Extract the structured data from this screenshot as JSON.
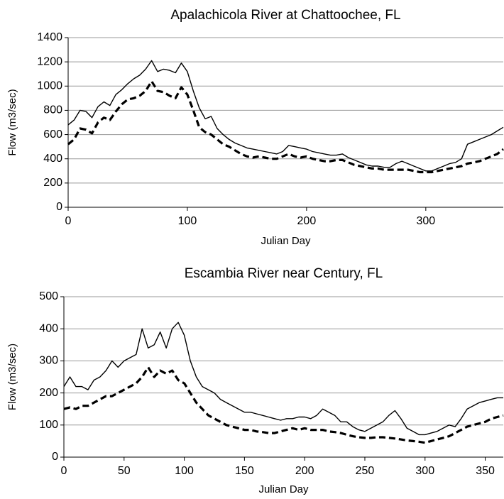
{
  "chart_data": [
    {
      "type": "line",
      "title": "Apalachicola River at Chattoochee, FL",
      "x_label": "Julian Day",
      "y_label": "Flow (m3/sec)",
      "x": [
        0,
        5,
        10,
        15,
        20,
        25,
        30,
        35,
        40,
        45,
        50,
        55,
        60,
        65,
        70,
        75,
        80,
        85,
        90,
        95,
        100,
        105,
        110,
        115,
        120,
        125,
        130,
        135,
        140,
        145,
        150,
        155,
        160,
        165,
        170,
        175,
        180,
        185,
        190,
        195,
        200,
        205,
        210,
        215,
        220,
        225,
        230,
        235,
        240,
        245,
        250,
        255,
        260,
        265,
        270,
        275,
        280,
        285,
        290,
        295,
        300,
        305,
        310,
        315,
        320,
        325,
        330,
        335,
        340,
        345,
        350,
        355,
        360,
        365
      ],
      "series": [
        {
          "color": "#000000",
          "style": "solid",
          "values": [
            680,
            720,
            800,
            790,
            740,
            830,
            870,
            840,
            930,
            970,
            1020,
            1060,
            1090,
            1140,
            1210,
            1120,
            1140,
            1130,
            1110,
            1190,
            1120,
            960,
            820,
            730,
            750,
            650,
            600,
            560,
            530,
            510,
            490,
            480,
            470,
            460,
            450,
            440,
            460,
            510,
            500,
            490,
            480,
            460,
            450,
            440,
            430,
            430,
            440,
            410,
            390,
            370,
            350,
            340,
            340,
            330,
            330,
            360,
            380,
            360,
            340,
            320,
            300,
            300,
            320,
            340,
            360,
            370,
            400,
            520,
            540,
            560,
            580,
            600,
            630,
            660
          ]
        },
        {
          "color": "#000000",
          "style": "dashed",
          "values": [
            520,
            560,
            650,
            640,
            610,
            700,
            740,
            720,
            790,
            850,
            890,
            900,
            920,
            960,
            1040,
            960,
            950,
            920,
            900,
            990,
            930,
            800,
            660,
            620,
            600,
            560,
            520,
            500,
            470,
            440,
            420,
            410,
            420,
            410,
            400,
            400,
            420,
            440,
            420,
            410,
            420,
            400,
            390,
            380,
            380,
            390,
            390,
            370,
            350,
            340,
            330,
            320,
            320,
            310,
            310,
            310,
            310,
            310,
            300,
            290,
            290,
            290,
            300,
            310,
            320,
            330,
            340,
            360,
            370,
            380,
            400,
            420,
            440,
            480
          ]
        }
      ],
      "xlim": [
        0,
        365
      ],
      "ylim": [
        0,
        1400
      ],
      "xticks": [
        0,
        100,
        200,
        300
      ],
      "yticks": [
        0,
        200,
        400,
        600,
        800,
        1000,
        1200,
        1400
      ],
      "grid": true
    },
    {
      "type": "line",
      "title": "Escambia River near Century, FL",
      "x_label": "Julian Day",
      "y_label": "Flow (m3/sec)",
      "x": [
        0,
        5,
        10,
        15,
        20,
        25,
        30,
        35,
        40,
        45,
        50,
        55,
        60,
        65,
        70,
        75,
        80,
        85,
        90,
        95,
        100,
        105,
        110,
        115,
        120,
        125,
        130,
        135,
        140,
        145,
        150,
        155,
        160,
        165,
        170,
        175,
        180,
        185,
        190,
        195,
        200,
        205,
        210,
        215,
        220,
        225,
        230,
        235,
        240,
        245,
        250,
        255,
        260,
        265,
        270,
        275,
        280,
        285,
        290,
        295,
        300,
        305,
        310,
        315,
        320,
        325,
        330,
        335,
        340,
        345,
        350,
        355,
        360,
        365
      ],
      "series": [
        {
          "color": "#000000",
          "style": "solid",
          "values": [
            220,
            250,
            220,
            220,
            210,
            240,
            250,
            270,
            300,
            280,
            300,
            310,
            320,
            400,
            340,
            350,
            390,
            340,
            400,
            420,
            380,
            300,
            250,
            220,
            210,
            200,
            180,
            170,
            160,
            150,
            140,
            140,
            135,
            130,
            125,
            120,
            115,
            120,
            120,
            125,
            125,
            120,
            130,
            150,
            140,
            130,
            110,
            110,
            95,
            85,
            80,
            90,
            100,
            110,
            130,
            145,
            120,
            90,
            80,
            70,
            70,
            75,
            80,
            90,
            100,
            95,
            120,
            150,
            160,
            170,
            175,
            180,
            185,
            185
          ]
        },
        {
          "color": "#000000",
          "style": "dashed",
          "values": [
            150,
            155,
            150,
            160,
            160,
            170,
            180,
            190,
            190,
            200,
            210,
            220,
            230,
            250,
            280,
            250,
            270,
            260,
            270,
            240,
            230,
            200,
            170,
            150,
            130,
            120,
            110,
            100,
            95,
            90,
            85,
            85,
            80,
            78,
            75,
            75,
            80,
            85,
            90,
            85,
            90,
            85,
            85,
            85,
            80,
            78,
            75,
            70,
            65,
            62,
            60,
            60,
            62,
            62,
            60,
            58,
            55,
            52,
            50,
            48,
            45,
            50,
            55,
            60,
            65,
            75,
            85,
            95,
            100,
            105,
            110,
            120,
            125,
            130
          ]
        }
      ],
      "xlim": [
        0,
        365
      ],
      "ylim": [
        0,
        500
      ],
      "xticks": [
        0,
        50,
        100,
        150,
        200,
        250,
        300,
        350
      ],
      "yticks": [
        0,
        100,
        200,
        300,
        400,
        500
      ],
      "grid": true
    }
  ]
}
